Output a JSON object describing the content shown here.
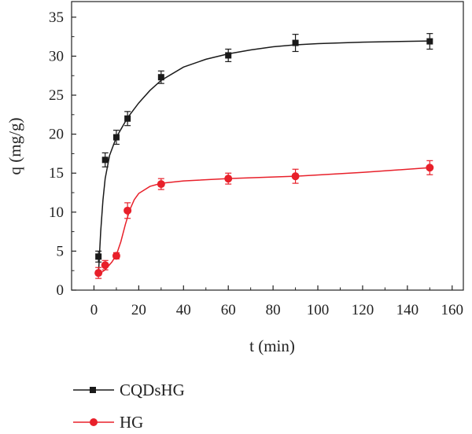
{
  "chart_data": {
    "type": "scatter",
    "xlabel": "t (min)",
    "ylabel": "q (mg/g)",
    "xlim": [
      -10,
      165
    ],
    "ylim": [
      0,
      37
    ],
    "xticks": [
      0,
      20,
      40,
      60,
      80,
      100,
      120,
      140,
      160
    ],
    "yticks": [
      0,
      5,
      10,
      15,
      20,
      25,
      30,
      35
    ],
    "grid": false,
    "legend_position": "bottom-left",
    "series": [
      {
        "name": "CQDsHG",
        "color": "#1a1a1a",
        "marker": "square",
        "points": [
          {
            "x": 2,
            "y": 4.3,
            "err": 0.7
          },
          {
            "x": 5,
            "y": 16.7,
            "err": 0.9
          },
          {
            "x": 10,
            "y": 19.6,
            "err": 0.9
          },
          {
            "x": 15,
            "y": 22.0,
            "err": 0.9
          },
          {
            "x": 30,
            "y": 27.3,
            "err": 0.8
          },
          {
            "x": 60,
            "y": 30.1,
            "err": 0.8
          },
          {
            "x": 90,
            "y": 31.7,
            "err": 1.1
          },
          {
            "x": 150,
            "y": 31.9,
            "err": 1.0
          }
        ],
        "fit": [
          {
            "x": 2,
            "y": 2.0
          },
          {
            "x": 3,
            "y": 7.5
          },
          {
            "x": 4,
            "y": 11.5
          },
          {
            "x": 5,
            "y": 14.3
          },
          {
            "x": 7,
            "y": 17.3
          },
          {
            "x": 10,
            "y": 19.6
          },
          {
            "x": 15,
            "y": 22.1
          },
          {
            "x": 20,
            "y": 24.0
          },
          {
            "x": 25,
            "y": 25.6
          },
          {
            "x": 30,
            "y": 26.9
          },
          {
            "x": 40,
            "y": 28.6
          },
          {
            "x": 50,
            "y": 29.6
          },
          {
            "x": 60,
            "y": 30.3
          },
          {
            "x": 70,
            "y": 30.8
          },
          {
            "x": 80,
            "y": 31.2
          },
          {
            "x": 90,
            "y": 31.45
          },
          {
            "x": 100,
            "y": 31.6
          },
          {
            "x": 120,
            "y": 31.8
          },
          {
            "x": 150,
            "y": 31.95
          }
        ]
      },
      {
        "name": "HG",
        "color": "#e8202a",
        "marker": "circle",
        "points": [
          {
            "x": 2,
            "y": 2.2,
            "err": 0.7
          },
          {
            "x": 5,
            "y": 3.2,
            "err": 0.6
          },
          {
            "x": 10,
            "y": 4.4,
            "err": 0.4
          },
          {
            "x": 15,
            "y": 10.2,
            "err": 1.0
          },
          {
            "x": 30,
            "y": 13.6,
            "err": 0.7
          },
          {
            "x": 60,
            "y": 14.3,
            "err": 0.7
          },
          {
            "x": 90,
            "y": 14.6,
            "err": 0.9
          },
          {
            "x": 150,
            "y": 15.7,
            "err": 0.9
          }
        ],
        "fit": [
          {
            "x": 2,
            "y": 2.0
          },
          {
            "x": 5,
            "y": 2.6
          },
          {
            "x": 8,
            "y": 3.6
          },
          {
            "x": 10,
            "y": 4.5
          },
          {
            "x": 12,
            "y": 6.2
          },
          {
            "x": 14,
            "y": 8.4
          },
          {
            "x": 16,
            "y": 10.3
          },
          {
            "x": 18,
            "y": 11.6
          },
          {
            "x": 20,
            "y": 12.4
          },
          {
            "x": 25,
            "y": 13.3
          },
          {
            "x": 30,
            "y": 13.7
          },
          {
            "x": 40,
            "y": 14.0
          },
          {
            "x": 60,
            "y": 14.3
          },
          {
            "x": 90,
            "y": 14.6
          },
          {
            "x": 120,
            "y": 15.1
          },
          {
            "x": 150,
            "y": 15.7
          }
        ]
      }
    ]
  }
}
